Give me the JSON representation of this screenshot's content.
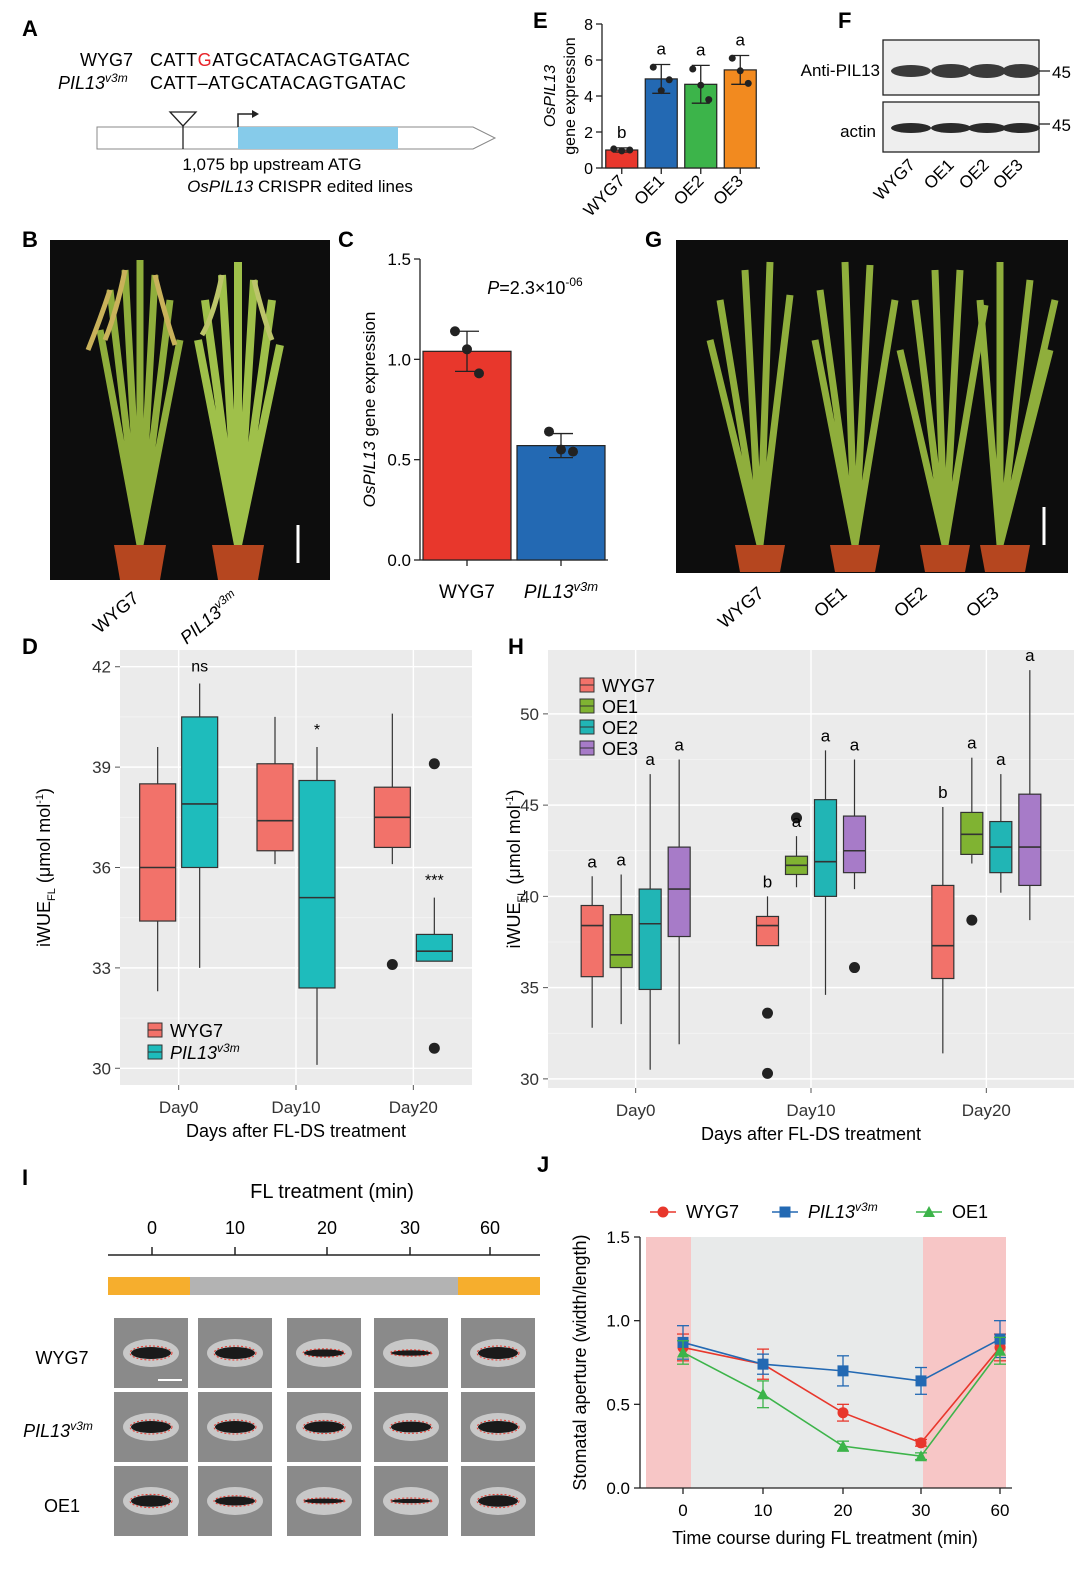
{
  "panel_letters": [
    "A",
    "B",
    "C",
    "D",
    "E",
    "F",
    "G",
    "H",
    "I",
    "J"
  ],
  "panel_a": {
    "wt_name": "WYG7",
    "wt_seq_pre": "CATT",
    "wt_seq_ins": "G",
    "wt_seq_post": "ATGCATACAGTGATAC",
    "mut_name": "PIL13",
    "mut_sup": "v3m",
    "mut_seq": "CATT–ATGCATACAGTGATAC",
    "caption1": "1,075 bp upstream ATG",
    "caption2_italic": "OsPIL13",
    "caption2_rest": " CRISPR edited lines",
    "colors": {
      "ins": "#e8232a",
      "cds": "#86cbea"
    }
  },
  "panel_b": {
    "labels": [
      "WYG7",
      "PIL13"
    ],
    "label_sup": "v3m"
  },
  "panel_g": {
    "labels": [
      "WYG7",
      "OE1",
      "OE2",
      "OE3"
    ]
  },
  "panel_f": {
    "row1_label": "Anti-PIL13",
    "row2_label": "actin",
    "mw1": "45",
    "mw2": "45",
    "lanes": [
      "WYG7",
      "OE1",
      "OE2",
      "OE3"
    ]
  },
  "panel_i": {
    "title": "FL treatment (min)",
    "times": [
      "0",
      "10",
      "20",
      "30",
      "60"
    ],
    "rows": [
      "WYG7",
      "PIL13",
      "OE1"
    ],
    "row_sup": "v3m",
    "colors": {
      "high": "#f6ae2d",
      "low": "#b3b3b3"
    }
  },
  "chart_data": [
    {
      "panel": "C",
      "type": "bar",
      "categories": [
        "WYG7",
        "PIL13v3m"
      ],
      "values": [
        1.04,
        0.57
      ],
      "errors": [
        0.1,
        0.06
      ],
      "points": [
        [
          1.14,
          1.05,
          0.93
        ],
        [
          0.64,
          0.55,
          0.54
        ]
      ],
      "colors": [
        "#e8372c",
        "#2369b3"
      ],
      "ylabel_italic": "OsPIL13",
      "ylabel_rest": "  gene expression",
      "ylim": [
        0,
        1.5
      ],
      "yticks": [
        "0.0",
        "0.5",
        "1.0",
        "1.5"
      ],
      "annotation": "P=2.3×10",
      "annotation_sup": "-06"
    },
    {
      "panel": "E",
      "type": "bar",
      "categories": [
        "WYG7",
        "OE1",
        "OE2",
        "OE3"
      ],
      "values": [
        1.0,
        4.95,
        4.65,
        5.45
      ],
      "errors": [
        0.12,
        0.8,
        1.05,
        0.8
      ],
      "points": [
        [
          1.06,
          0.95,
          1.0
        ],
        [
          5.6,
          4.3,
          4.9
        ],
        [
          5.5,
          4.6,
          3.8
        ],
        [
          6.1,
          5.4,
          4.7
        ]
      ],
      "colors": [
        "#e8372c",
        "#2369b3",
        "#3cb44a",
        "#f28a1f"
      ],
      "letters": [
        "b",
        "a",
        "a",
        "a"
      ],
      "ylabel_italic": "OsPIL13",
      "ylabel_rest": "gene expression",
      "ylim": [
        0,
        8
      ],
      "yticks": [
        "0",
        "2",
        "4",
        "6",
        "8"
      ]
    },
    {
      "panel": "D",
      "type": "box",
      "categories": [
        "Day0",
        "Day10",
        "Day20"
      ],
      "series": [
        {
          "name": "WYG7",
          "color": "#f2726a",
          "boxes": [
            [
              32.3,
              34.4,
              36.0,
              38.5,
              39.6
            ],
            [
              36.1,
              36.5,
              37.4,
              39.1,
              40.5
            ],
            [
              36.1,
              36.6,
              37.5,
              38.4,
              40.6
            ]
          ],
          "outliers": [
            [],
            [],
            [
              33.1
            ]
          ]
        },
        {
          "name": "PIL13v3m",
          "color": "#1ebcbc",
          "boxes": [
            [
              33.0,
              36.0,
              37.9,
              40.5,
              41.5
            ],
            [
              30.1,
              32.4,
              35.1,
              38.6,
              39.6
            ],
            [
              33.2,
              33.2,
              33.5,
              34.0,
              35.1
            ]
          ],
          "outliers": [
            [],
            [],
            [
              39.1,
              30.6
            ]
          ]
        }
      ],
      "annotations": [
        "ns",
        "*",
        "***"
      ],
      "legend_main": [
        "WYG7",
        "PIL13"
      ],
      "legend_sup": "v3m",
      "ylabel": "iWUE",
      "ylabel_sub": "FL",
      "ylabel_unit": " (μmol mol",
      "ylabel_unit_sup": "-1",
      "ylabel_close": ")",
      "xlabel": "Days after FL-DS treatment",
      "ylim": [
        29.5,
        42.5
      ],
      "yticks": [
        "30",
        "33",
        "36",
        "39",
        "42"
      ]
    },
    {
      "panel": "H",
      "type": "box",
      "categories": [
        "Day0",
        "Day10",
        "Day20"
      ],
      "series": [
        {
          "name": "WYG7",
          "color": "#f2726a",
          "boxes": [
            [
              32.8,
              35.6,
              38.4,
              39.5,
              41.1
            ],
            [
              37.3,
              37.3,
              38.4,
              38.9,
              40.0
            ],
            [
              31.4,
              35.5,
              37.3,
              40.6,
              44.9
            ]
          ],
          "outliers": [
            [],
            [
              33.6,
              30.3
            ],
            []
          ]
        },
        {
          "name": "OE1",
          "color": "#80b332",
          "boxes": [
            [
              33.0,
              36.1,
              36.8,
              39.0,
              41.2
            ],
            [
              40.5,
              41.2,
              41.7,
              42.2,
              43.3
            ],
            [
              41.8,
              42.3,
              43.4,
              44.6,
              47.6
            ]
          ],
          "outliers": [
            [],
            [
              44.3
            ],
            [
              38.7
            ]
          ]
        },
        {
          "name": "OE2",
          "color": "#21b5b5",
          "boxes": [
            [
              30.5,
              34.9,
              38.5,
              40.4,
              46.7
            ],
            [
              34.6,
              40.0,
              41.9,
              45.3,
              48.0
            ],
            [
              40.2,
              41.3,
              42.7,
              44.1,
              46.7
            ]
          ],
          "outliers": [
            [],
            [],
            []
          ]
        },
        {
          "name": "OE3",
          "color": "#a77bc8",
          "boxes": [
            [
              31.9,
              37.8,
              40.4,
              42.7,
              47.5
            ],
            [
              40.4,
              41.3,
              42.5,
              44.4,
              47.5
            ],
            [
              38.7,
              40.6,
              42.7,
              45.6,
              52.4
            ]
          ],
          "outliers": [
            [],
            [
              36.1
            ],
            []
          ]
        }
      ],
      "letters": [
        [
          "a",
          "a",
          "a",
          "a"
        ],
        [
          "b",
          "a",
          "a",
          "a"
        ],
        [
          "b",
          "a",
          "a",
          "a"
        ]
      ],
      "ylabel": "iWUE",
      "ylabel_sub": "FL",
      "ylabel_unit": " (μmol mol",
      "ylabel_unit_sup": "-1",
      "ylabel_close": ")",
      "xlabel": "Days after FL-DS treatment",
      "ylim": [
        29.5,
        53.5
      ],
      "yticks": [
        "30",
        "35",
        "40",
        "45",
        "50"
      ]
    },
    {
      "panel": "J",
      "type": "line",
      "x": [
        "0",
        "10",
        "20",
        "30",
        "60"
      ],
      "series": [
        {
          "name": "WYG7",
          "color": "#e8372c",
          "marker": "circle",
          "values": [
            0.84,
            0.74,
            0.45,
            0.27,
            0.84
          ],
          "errors": [
            0.08,
            0.09,
            0.05,
            0.02,
            0.08
          ]
        },
        {
          "name": "PIL13v3m",
          "color": "#2369b3",
          "marker": "square",
          "values": [
            0.87,
            0.74,
            0.7,
            0.64,
            0.89
          ],
          "errors": [
            0.1,
            0.06,
            0.09,
            0.08,
            0.11
          ]
        },
        {
          "name": "OE1",
          "color": "#3cb44a",
          "marker": "triangle",
          "values": [
            0.81,
            0.56,
            0.25,
            0.19,
            0.82
          ],
          "errors": [
            0.07,
            0.08,
            0.03,
            0.02,
            0.08
          ]
        }
      ],
      "legend_main": [
        "WYG7",
        "PIL13",
        "OE1"
      ],
      "legend_sup": "v3m",
      "ylabel": "Stomatal aperture (width/length)",
      "xlabel": "Time course during FL treatment (min)",
      "ylim": [
        0,
        1.5
      ],
      "yticks": [
        "0.0",
        "0.5",
        "1.0",
        "1.5"
      ],
      "shade_colors": {
        "high": "#f7c6c6",
        "low": "#e8eaea"
      }
    }
  ]
}
